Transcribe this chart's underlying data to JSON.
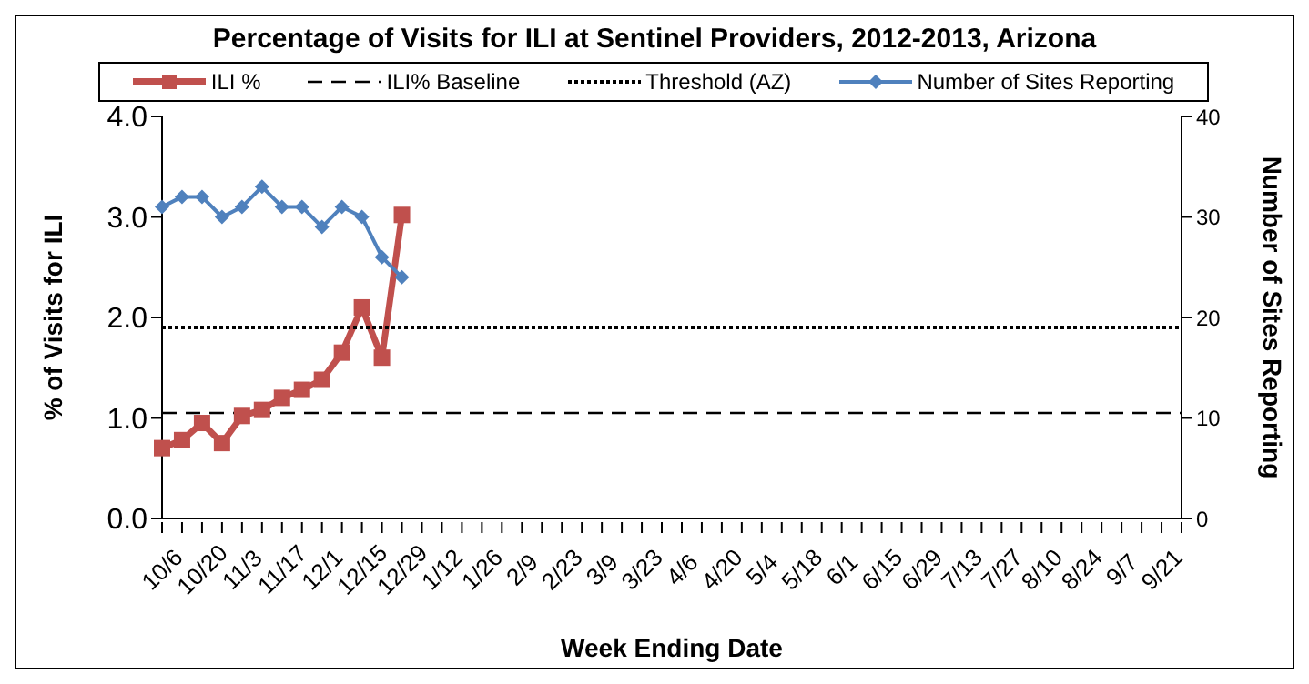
{
  "chart_data": {
    "type": "line",
    "title": "Percentage of Visits for ILI at Sentinel Providers, 2012-2013, Arizona",
    "xlabel": "Week Ending Date",
    "ylabel": "% of Visits for ILI",
    "y2label": "Number of Sites Reporting",
    "categories": [
      "10/6",
      null,
      "10/20",
      null,
      "11/3",
      null,
      "11/17",
      null,
      "12/1",
      null,
      "12/15",
      null,
      "12/29",
      null,
      "1/12",
      null,
      "1/26",
      null,
      "2/9",
      null,
      "2/23",
      null,
      "3/9",
      null,
      "3/23",
      null,
      "4/6",
      null,
      "4/20",
      null,
      "5/4",
      null,
      "5/18",
      null,
      "6/1",
      null,
      "6/15",
      null,
      "6/29",
      null,
      "7/13",
      null,
      "7/27",
      null,
      "8/10",
      null,
      "8/24",
      null,
      "9/7",
      null,
      "9/21",
      null
    ],
    "series": [
      {
        "name": "ILI %",
        "color": "#c0504d",
        "marker": "square",
        "line_style": "solid",
        "values": [
          0.7,
          0.78,
          0.95,
          0.75,
          1.02,
          1.08,
          1.2,
          1.28,
          1.38,
          1.65,
          2.1,
          1.6,
          3.02,
          null,
          null,
          null,
          null,
          null,
          null,
          null,
          null,
          null,
          null,
          null,
          null,
          null,
          null,
          null,
          null,
          null,
          null,
          null,
          null,
          null,
          null,
          null,
          null,
          null,
          null,
          null,
          null,
          null,
          null,
          null,
          null,
          null,
          null,
          null,
          null,
          null,
          null,
          null
        ]
      },
      {
        "name": "ILI% Baseline",
        "color": "#000000",
        "marker": "none",
        "line_style": "dashed",
        "values": [
          1.05,
          1.05,
          1.05,
          1.05,
          1.05,
          1.05,
          1.05,
          1.05,
          1.05,
          1.05,
          1.05,
          1.05,
          1.05,
          1.05,
          1.05,
          1.05,
          1.05,
          1.05,
          1.05,
          1.05,
          1.05,
          1.05,
          1.05,
          1.05,
          1.05,
          1.05,
          1.05,
          1.05,
          1.05,
          1.05,
          1.05,
          1.05,
          1.05,
          1.05,
          1.05,
          1.05,
          1.05,
          1.05,
          1.05,
          1.05,
          1.05,
          1.05,
          1.05,
          1.05,
          1.05,
          1.05,
          1.05,
          1.05,
          1.05,
          1.05,
          1.05,
          1.05
        ]
      },
      {
        "name": "Threshold (AZ)",
        "color": "#000000",
        "marker": "none",
        "line_style": "dotted",
        "values": [
          1.9,
          1.9,
          1.9,
          1.9,
          1.9,
          1.9,
          1.9,
          1.9,
          1.9,
          1.9,
          1.9,
          1.9,
          1.9,
          1.9,
          1.9,
          1.9,
          1.9,
          1.9,
          1.9,
          1.9,
          1.9,
          1.9,
          1.9,
          1.9,
          1.9,
          1.9,
          1.9,
          1.9,
          1.9,
          1.9,
          1.9,
          1.9,
          1.9,
          1.9,
          1.9,
          1.9,
          1.9,
          1.9,
          1.9,
          1.9,
          1.9,
          1.9,
          1.9,
          1.9,
          1.9,
          1.9,
          1.9,
          1.9,
          1.9,
          1.9,
          1.9,
          1.9
        ]
      },
      {
        "name": "Number of Sites Reporting",
        "color": "#4f81bd",
        "marker": "diamond",
        "line_style": "solid",
        "axis": "y2",
        "values": [
          31,
          32,
          32,
          30,
          31,
          33,
          31,
          31,
          29,
          31,
          30,
          26,
          24,
          null,
          null,
          null,
          null,
          null,
          null,
          null,
          null,
          null,
          null,
          null,
          null,
          null,
          null,
          null,
          null,
          null,
          null,
          null,
          null,
          null,
          null,
          null,
          null,
          null,
          null,
          null,
          null,
          null,
          null,
          null,
          null,
          null,
          null,
          null,
          null,
          null,
          null,
          null
        ]
      }
    ],
    "ylim": [
      0,
      4
    ],
    "yticks": [
      {
        "value": 0,
        "label": "0.0"
      },
      {
        "value": 1,
        "label": "1.0"
      },
      {
        "value": 2,
        "label": "2.0"
      },
      {
        "value": 3,
        "label": "3.0"
      },
      {
        "value": 4,
        "label": "4.0"
      }
    ],
    "y2lim": [
      0,
      40
    ],
    "y2ticks": [
      0,
      10,
      20,
      30,
      40
    ],
    "grid": false,
    "legend": "top"
  }
}
